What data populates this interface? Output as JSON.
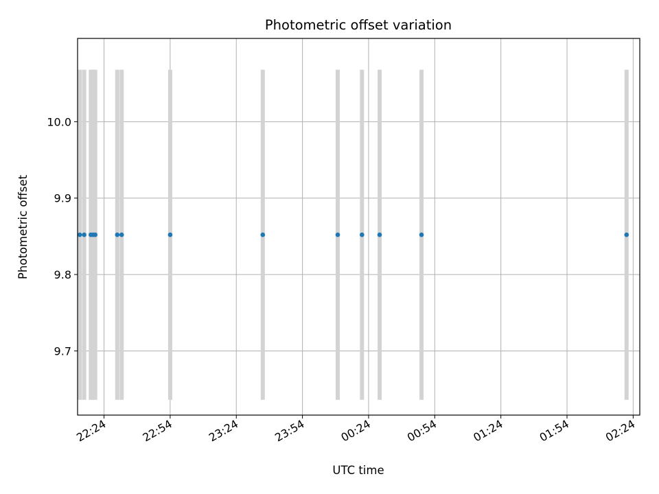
{
  "chart_data": {
    "type": "scatter",
    "title": "Photometric offset variation",
    "xlabel": "UTC time",
    "ylabel": "Photometric offset",
    "x_ticks": [
      "22:24",
      "22:54",
      "23:24",
      "23:54",
      "00:24",
      "00:54",
      "01:24",
      "01:54",
      "02:24"
    ],
    "y_ticks": [
      9.7,
      9.8,
      9.9,
      10.0
    ],
    "ylim": [
      9.616,
      10.109
    ],
    "grid": true,
    "errorbar_range": [
      9.636,
      10.068
    ],
    "x_range": [
      "22:12",
      "02:27"
    ],
    "point_times": [
      "22:13",
      "22:15",
      "22:18",
      "22:19",
      "22:20",
      "22:30",
      "22:32",
      "22:54",
      "23:36",
      "00:10",
      "00:21",
      "00:29",
      "00:48",
      "02:21"
    ],
    "y_values": [
      9.852,
      9.852,
      9.852,
      9.852,
      9.852,
      9.852,
      9.852,
      9.852,
      9.852,
      9.852,
      9.852,
      9.852,
      9.852,
      9.852
    ],
    "colors": {
      "points": "#1f77b4",
      "errorbars": "#d3d3d3",
      "grid": "#b0b0b0",
      "axes": "#000000"
    }
  }
}
